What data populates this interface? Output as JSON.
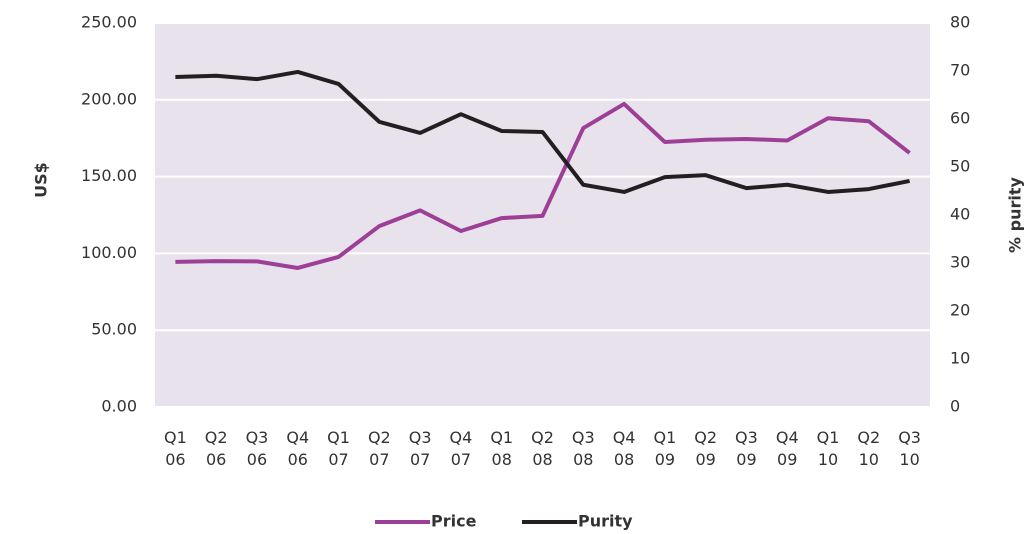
{
  "chart_data": {
    "type": "line",
    "categories": [
      "Q1 06",
      "Q2 06",
      "Q3 06",
      "Q4 06",
      "Q1 07",
      "Q2 07",
      "Q3 07",
      "Q4 07",
      "Q1 08",
      "Q2 08",
      "Q3 08",
      "Q4 08",
      "Q1 09",
      "Q2 09",
      "Q3 09",
      "Q4 09",
      "Q1 10",
      "Q2 10",
      "Q3 10"
    ],
    "series": [
      {
        "name": "Price",
        "color": "#9e3f97",
        "axis": "y",
        "values": [
          94.5,
          95,
          94.8,
          90.5,
          97.7,
          117.8,
          128,
          114.6,
          123,
          124.4,
          181.6,
          197.3,
          172.5,
          174,
          174.5,
          173.5,
          188,
          186,
          165.4
        ]
      },
      {
        "name": "Purity",
        "color": "#231f20",
        "axis": "y2",
        "values": [
          68.75,
          69,
          68.3,
          69.8,
          67.3,
          59.4,
          57.1,
          61,
          57.5,
          57.3,
          46.3,
          44.8,
          47.9,
          48.3,
          45.6,
          46.3,
          44.8,
          45.4,
          47.1
        ]
      }
    ],
    "y_label": "US$",
    "y2_label": "% purity",
    "ylim": [
      0,
      250
    ],
    "yticks": [
      {
        "value": 0,
        "label": "0.00"
      },
      {
        "value": 50,
        "label": "50.00"
      },
      {
        "value": 100,
        "label": "100.00"
      },
      {
        "value": 150,
        "label": "150.00"
      },
      {
        "value": 200,
        "label": "200.00"
      },
      {
        "value": 250,
        "label": "250.00"
      }
    ],
    "y2lim": [
      0,
      80
    ],
    "y2ticks": [
      0,
      10,
      20,
      30,
      40,
      50,
      60,
      70,
      80
    ],
    "grid": true,
    "legend": "bottom"
  }
}
